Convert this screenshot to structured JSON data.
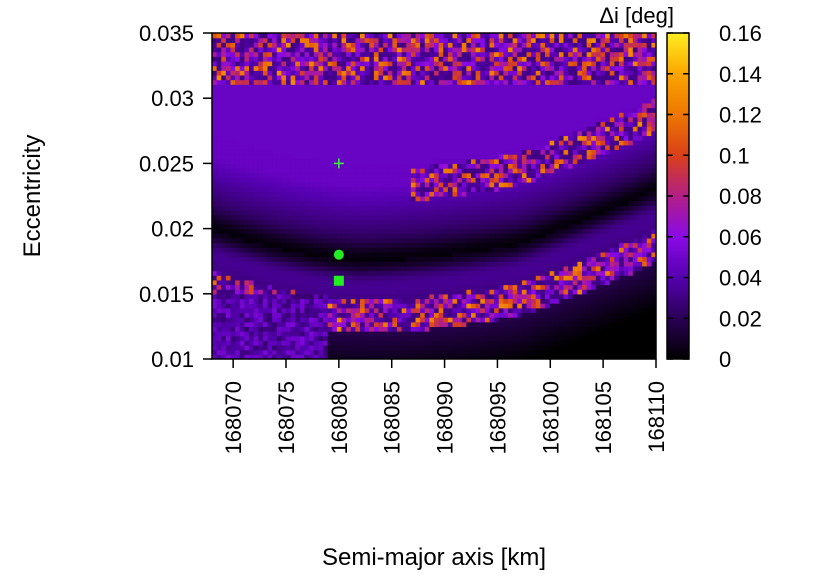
{
  "chart_data": {
    "type": "heatmap",
    "title": "",
    "xlabel": "Semi-major axis [km]",
    "ylabel": "Eccentricity",
    "xlim": [
      168068,
      168110
    ],
    "ylim": [
      0.01,
      0.035
    ],
    "x_ticks": [
      "168070",
      "168075",
      "168080",
      "168085",
      "168090",
      "168095",
      "168100",
      "168105",
      "168110"
    ],
    "y_ticks": [
      "0.01",
      "0.015",
      "0.02",
      "0.025",
      "0.03",
      "0.035"
    ],
    "colorbar": {
      "label": "Δi [deg]",
      "range": [
        0,
        0.16
      ],
      "ticks": [
        "0",
        "0.02",
        "0.04",
        "0.06",
        "0.08",
        "0.1",
        "0.12",
        "0.14",
        "0.16"
      ],
      "palette": [
        "#000000",
        "#2a0055",
        "#5500b0",
        "#8a0ae6",
        "#b31f86",
        "#d9401a",
        "#ee7700",
        "#fba500",
        "#ffee22"
      ]
    },
    "markers": [
      {
        "kind": "plus",
        "x": 168080,
        "y": 0.025,
        "color": "#33ff33"
      },
      {
        "kind": "circle",
        "x": 168080,
        "y": 0.018,
        "color": "#22ee22"
      },
      {
        "kind": "square",
        "x": 168080,
        "y": 0.016,
        "color": "#22ee22"
      }
    ],
    "grid": false,
    "legend": "none"
  }
}
